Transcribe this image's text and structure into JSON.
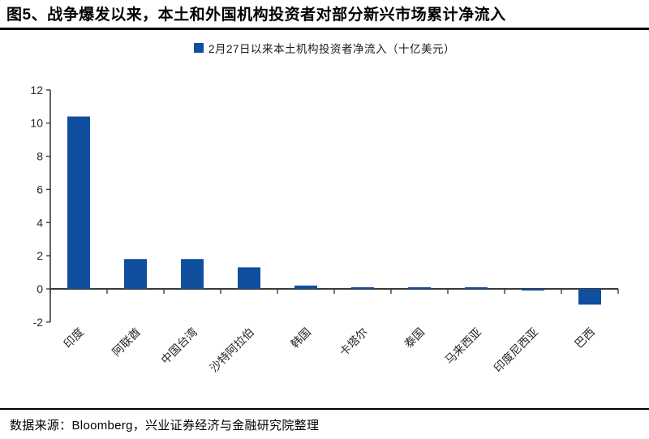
{
  "title": "图5、战争爆发以来，本土和外国机构投资者对部分新兴市场累计净流入",
  "source": "数据来源：Bloomberg，兴业证券经济与金融研究院整理",
  "chart_data": {
    "type": "bar",
    "title": "",
    "legend": "2月27日以来本土机构投资者净流入（十亿美元）",
    "legend_position": "top-center",
    "categories": [
      "印度",
      "阿联酋",
      "中国台湾",
      "沙特阿拉伯",
      "韩国",
      "卡塔尔",
      "泰国",
      "马来西亚",
      "印度尼西亚",
      "巴西"
    ],
    "values": [
      10.4,
      1.8,
      1.8,
      1.3,
      0.2,
      0.1,
      0.1,
      0.1,
      -0.1,
      -0.95
    ],
    "xlabel": "",
    "ylabel": "",
    "ylim": [
      -2,
      12
    ],
    "ytick_step": 2,
    "grid": false,
    "bar_color": "#0F4F9E",
    "axis_color": "#3A3A3A",
    "text_color": "#262626"
  }
}
